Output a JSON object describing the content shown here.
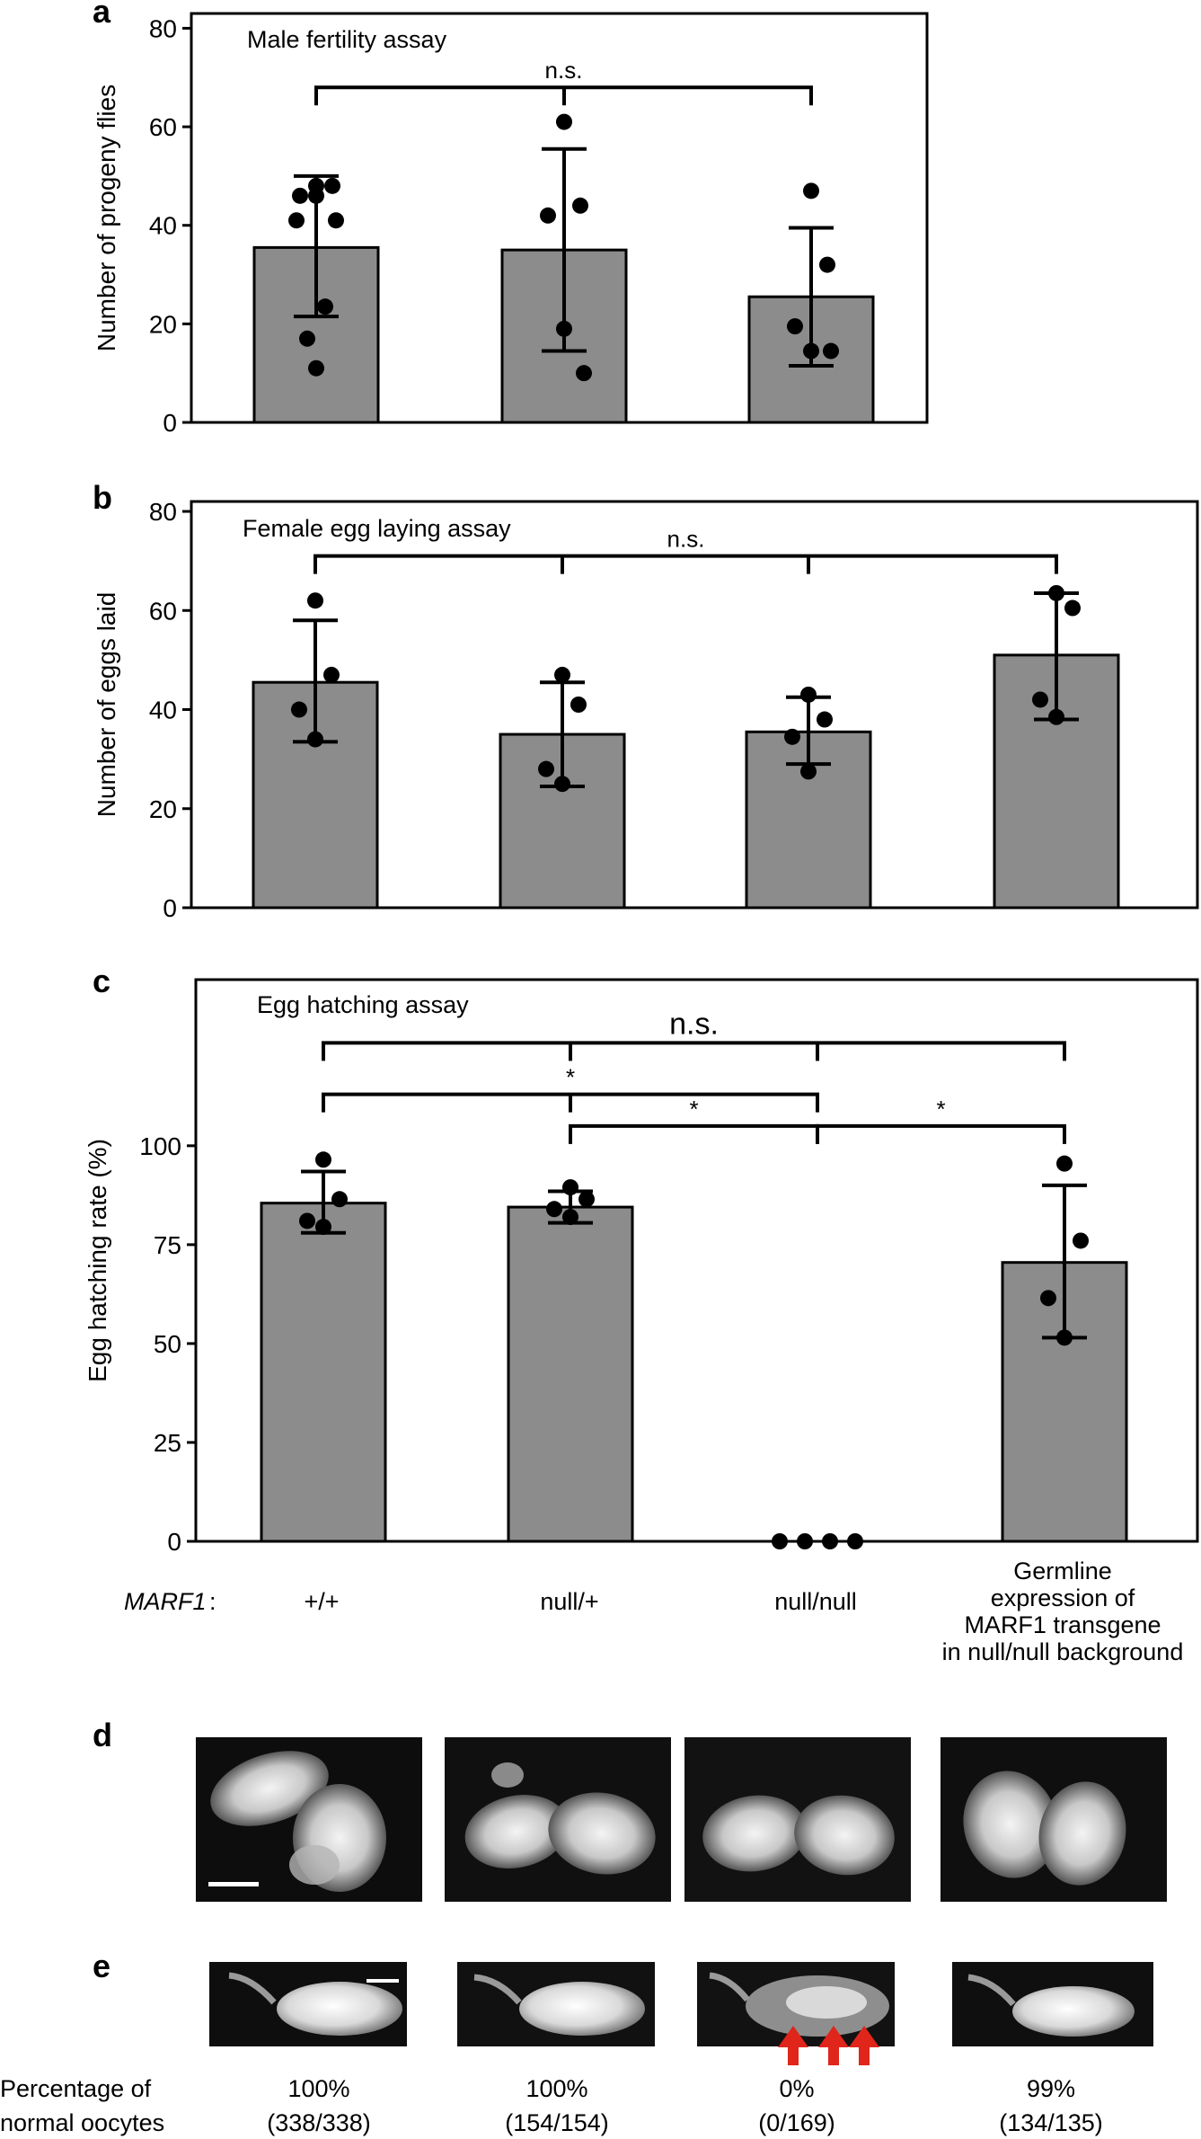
{
  "panels": {
    "a": "a",
    "b": "b",
    "c": "c",
    "d": "d",
    "e": "e"
  },
  "conditions": {
    "genotype_label": "MARF1",
    "genotype_colon": ":",
    "labels": [
      "+/+",
      "null/+",
      "null/null"
    ],
    "transgene_label": [
      "Germline",
      "expression of",
      "MARF1 transgene",
      "in null/null background"
    ]
  },
  "chart_data": [
    {
      "type": "bar",
      "panel": "a",
      "title": "Male fertility assay",
      "xlabel": "",
      "ylabel": "Number of progeny flies",
      "ylim": [
        0,
        83
      ],
      "yticks": [
        0,
        20,
        40,
        60,
        80
      ],
      "bar_color": "#8c8c8c",
      "categories": [
        "+/+",
        "null/+",
        "null/null"
      ],
      "values": [
        35.5,
        35,
        25.5
      ],
      "error_low": [
        21.5,
        14.5,
        11.5
      ],
      "error_high": [
        50,
        55.5,
        39.5
      ],
      "points": [
        [
          48,
          48,
          46,
          46,
          41,
          41,
          23.5,
          17,
          11
        ],
        [
          61,
          44,
          42,
          19,
          10
        ],
        [
          47,
          32,
          19.5,
          14.5,
          14.5
        ]
      ],
      "comparisons": [
        {
          "from": 0,
          "to": 2,
          "label": "n.s.",
          "y": 68
        }
      ]
    },
    {
      "type": "bar",
      "panel": "b",
      "title": "Female egg laying assay",
      "xlabel": "",
      "ylabel": "Number of eggs laid",
      "ylim": [
        0,
        82
      ],
      "yticks": [
        0,
        20,
        40,
        60,
        80
      ],
      "bar_color": "#8c8c8c",
      "categories": [
        "+/+",
        "null/+",
        "null/null",
        "Germline expression of MARF1 transgene in null/null background"
      ],
      "values": [
        45.5,
        35,
        35.5,
        51
      ],
      "error_low": [
        33.5,
        24.5,
        29,
        38
      ],
      "error_high": [
        58,
        45.5,
        42.5,
        63.5
      ],
      "points": [
        [
          62,
          47,
          40,
          34
        ],
        [
          47,
          41,
          28,
          25
        ],
        [
          43,
          38,
          34.5,
          27.5
        ],
        [
          63.5,
          60.5,
          42,
          38.5
        ]
      ],
      "comparisons": [
        {
          "from": 0,
          "to": 3,
          "label": "n.s.",
          "y": 71
        }
      ]
    },
    {
      "type": "bar",
      "panel": "c",
      "title": "Egg hatching assay",
      "xlabel": "",
      "ylabel": "Egg hatching rate (%)",
      "ylim": [
        0,
        142
      ],
      "yticks": [
        0,
        25,
        50,
        75,
        100
      ],
      "bar_color": "#8c8c8c",
      "categories": [
        "+/+",
        "null/+",
        "null/null",
        "Germline expression of MARF1 transgene in null/null background"
      ],
      "values": [
        85.5,
        84.5,
        0,
        70.5
      ],
      "error_low": [
        78,
        80.5,
        0,
        51.5
      ],
      "error_high": [
        93.5,
        88.5,
        0,
        90
      ],
      "points": [
        [
          96.5,
          86.5,
          81,
          79.5
        ],
        [
          89.5,
          86.5,
          84,
          82
        ],
        [
          0,
          0,
          0,
          0
        ],
        [
          95.5,
          76,
          61.5,
          51.5
        ]
      ],
      "comparisons": [
        {
          "from": 0,
          "to": 3,
          "label": "n.s.",
          "y": 126,
          "big": true
        },
        {
          "from": 0,
          "to": 2,
          "label": "*",
          "y": 113
        },
        {
          "from": 1,
          "to": 2,
          "label": "*",
          "y": 105
        },
        {
          "from": 2,
          "to": 3,
          "label": "*",
          "y": 105
        }
      ]
    }
  ],
  "ovary_images": [
    "ovary-wildtype",
    "ovary-heterozygous",
    "ovary-null",
    "ovary-rescue"
  ],
  "oocyte_images": [
    "oocyte-wildtype",
    "oocyte-heterozygous",
    "oocyte-null",
    "oocyte-rescue"
  ],
  "percentages": {
    "row_label": [
      "Percentage of",
      "normal oocytes"
    ],
    "values": [
      "100%",
      "100%",
      "0%",
      "99%"
    ],
    "counts": [
      "(338/338)",
      "(154/154)",
      "(0/169)",
      "(134/135)"
    ]
  },
  "colors": {
    "arrow": "#e0251b",
    "bar": "#8c8c8c",
    "scale_bar": "#ffffff"
  }
}
